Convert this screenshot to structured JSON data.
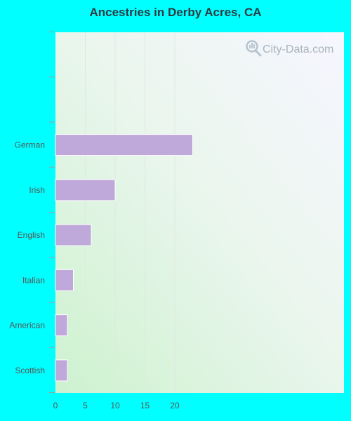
{
  "chart_data": {
    "type": "bar",
    "orientation": "horizontal",
    "title": "Ancestries in Derby Acres, CA",
    "categories": [
      "German",
      "Irish",
      "English",
      "Italian",
      "American",
      "Scottish"
    ],
    "values": [
      23,
      10,
      6,
      3,
      2,
      2
    ],
    "xlim": [
      0,
      24
    ],
    "xticks": [
      "0",
      "5",
      "10",
      "15",
      "20"
    ],
    "xtick_values": [
      0,
      5,
      10,
      15,
      20
    ],
    "empty_slots_top": 2,
    "grid": true,
    "bar_color": "#bfa8da",
    "bar_edge_color": "#ffffff",
    "xlabel": "",
    "ylabel": ""
  },
  "background_color": "#00ffff",
  "watermark": {
    "text": "City-Data.com",
    "icon": "magnifier-icon",
    "color": "#a9b3bc"
  }
}
